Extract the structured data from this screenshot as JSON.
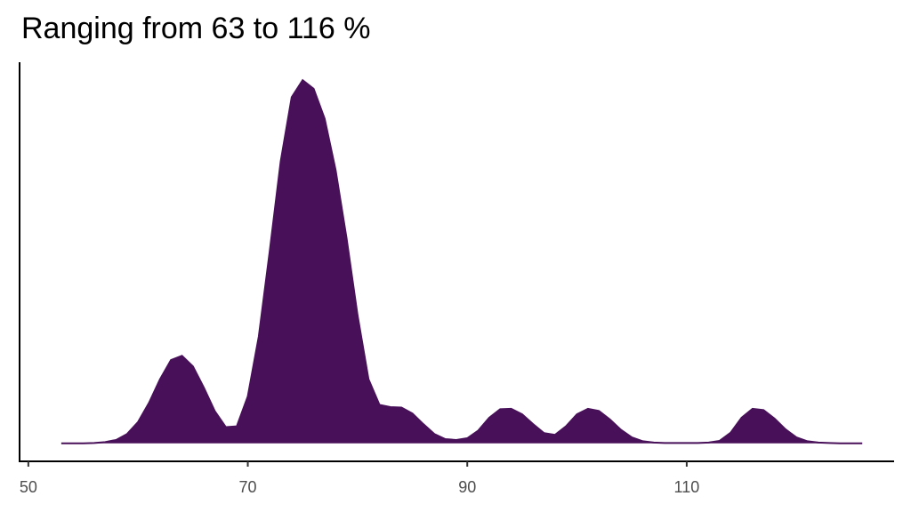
{
  "chart_data": {
    "type": "density",
    "title": "Ranging from 63 to 116 %",
    "color": "#481059",
    "x": [
      53,
      54,
      55,
      56,
      57,
      58,
      59,
      60,
      61,
      62,
      63,
      64,
      65,
      66,
      67,
      68,
      69,
      70,
      71,
      72,
      73,
      74,
      75,
      76,
      77,
      78,
      79,
      80,
      81,
      82,
      83,
      84,
      85,
      86,
      87,
      88,
      89,
      90,
      91,
      92,
      93,
      94,
      95,
      96,
      97,
      98,
      99,
      100,
      101,
      102,
      103,
      104,
      105,
      106,
      107,
      108,
      109,
      110,
      111,
      112,
      113,
      114,
      115,
      116,
      117,
      118,
      119,
      120,
      121,
      122,
      123,
      124,
      125,
      126
    ],
    "y": [
      0,
      0,
      0,
      0.0001,
      0.0003,
      0.0008,
      0.0022,
      0.005,
      0.0095,
      0.015,
      0.0195,
      0.0205,
      0.018,
      0.013,
      0.0075,
      0.0038,
      0.004,
      0.011,
      0.025,
      0.045,
      0.066,
      0.081,
      0.085,
      0.083,
      0.076,
      0.064,
      0.048,
      0.03,
      0.015,
      0.009,
      0.0085,
      0.0084,
      0.007,
      0.0045,
      0.0022,
      0.001,
      0.0008,
      0.0012,
      0.003,
      0.006,
      0.008,
      0.0081,
      0.0068,
      0.0045,
      0.0024,
      0.002,
      0.004,
      0.0068,
      0.0081,
      0.0076,
      0.0056,
      0.0032,
      0.0014,
      0.0005,
      0.0002,
      0.0001,
      0.0001,
      0.0001,
      0.0001,
      0.0002,
      0.0006,
      0.0025,
      0.006,
      0.0081,
      0.0078,
      0.0058,
      0.0033,
      0.0014,
      0.0005,
      0.0002,
      0.0001,
      0,
      0,
      0
    ],
    "xlim": [
      49.2,
      128.9
    ],
    "xticks": [
      50,
      70,
      90,
      110
    ],
    "ylim": [
      -0.0042,
      0.0892
    ]
  }
}
